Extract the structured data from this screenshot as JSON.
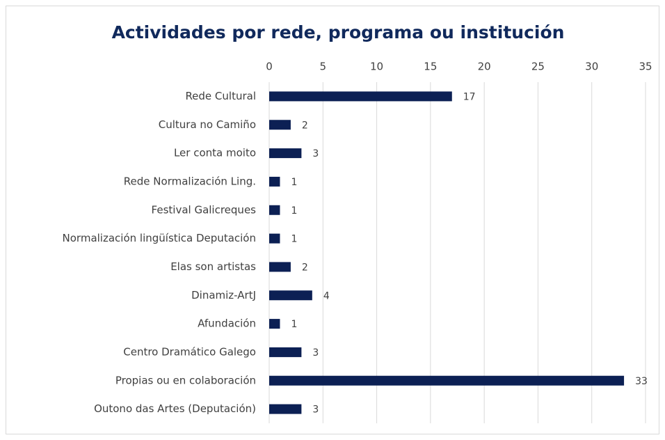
{
  "chart_data": {
    "type": "bar",
    "title": "Actividades por rede, programa ou institución",
    "categories": [
      "Rede Cultural",
      "Cultura no Camiño",
      "Ler conta moito",
      "Rede Normalización Ling.",
      "Festival Galicreques",
      "Normalización lingüística Deputación",
      "Elas son artistas",
      "Dinamiz-ArtJ",
      "Afundación",
      "Centro Dramático Galego",
      "Propias ou en colaboración",
      "Outono das Artes (Deputación)"
    ],
    "values": [
      17,
      2,
      3,
      1,
      1,
      1,
      2,
      4,
      1,
      3,
      33,
      3
    ],
    "color": "#0c2054",
    "xlim": [
      0,
      35
    ],
    "xticks": [
      0,
      5,
      10,
      15,
      20,
      25,
      30,
      35
    ],
    "grid": true
  }
}
